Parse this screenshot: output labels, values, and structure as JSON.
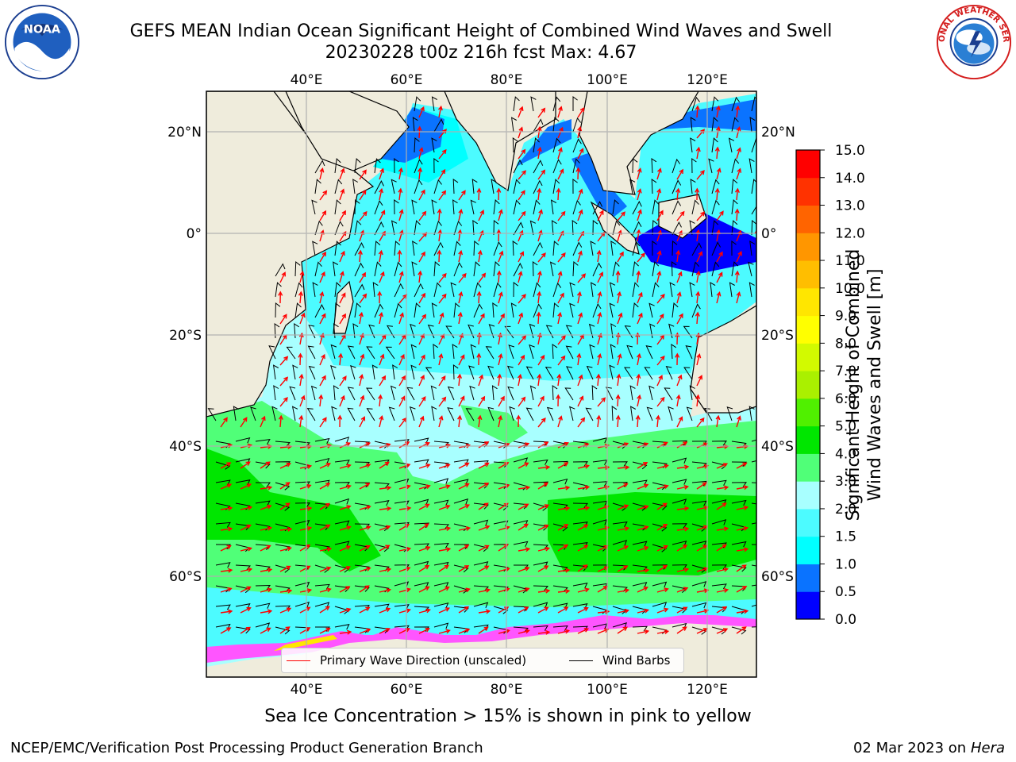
{
  "title": {
    "line1": "GEFS MEAN Indian Ocean Significant Height of Combined Wind Waves and Swell",
    "line2": "20230228 t00z 216h fcst   Max: 4.67"
  },
  "logos": {
    "left": {
      "icon": "noaa-logo-icon",
      "text": "NOAA"
    },
    "right": {
      "icon": "nws-logo-icon",
      "text": "NATIONAL WEATHER SERVICE"
    }
  },
  "map": {
    "lon_range": [
      20,
      130
    ],
    "lat_range": [
      -74,
      28
    ],
    "lon_ticks": [
      "40°E",
      "60°E",
      "80°E",
      "100°E",
      "120°E"
    ],
    "lat_ticks": [
      "20°N",
      "0°",
      "20°S",
      "40°S",
      "60°S"
    ],
    "gridlines": true,
    "land_color": "#efecdc",
    "legend": {
      "wave": "Primary Wave Direction (unscaled)",
      "wave_color": "#ff0000",
      "barb": "Wind Barbs",
      "barb_color": "#000000"
    }
  },
  "colorbar": {
    "label_line1": "Significant Height of Combined",
    "label_line2": "Wind Waves and Swell [m]",
    "ticks": [
      "0.0",
      "0.5",
      "1.0",
      "1.5",
      "2.0",
      "3.0",
      "4.0",
      "5.0",
      "6.0",
      "7.0",
      "8.0",
      "9.0",
      "10.0",
      "11.0",
      "12.0",
      "13.0",
      "14.0",
      "15.0"
    ],
    "colors": [
      "#0000ff",
      "#0a73ff",
      "#00ffff",
      "#4cfbff",
      "#a8ffff",
      "#50ff78",
      "#00e600",
      "#50f000",
      "#aaf000",
      "#d2fa00",
      "#ffff00",
      "#ffe600",
      "#ffbe00",
      "#ff9600",
      "#ff6400",
      "#ff3200",
      "#ff0000"
    ]
  },
  "ice_note": "Sea Ice Concentration > 15% is shown in pink to yellow",
  "footer": {
    "left": "NCEP/EMC/Verification Post Processing Product Generation Branch",
    "date": "02 Mar 2023 on",
    "machine": "Hera"
  }
}
